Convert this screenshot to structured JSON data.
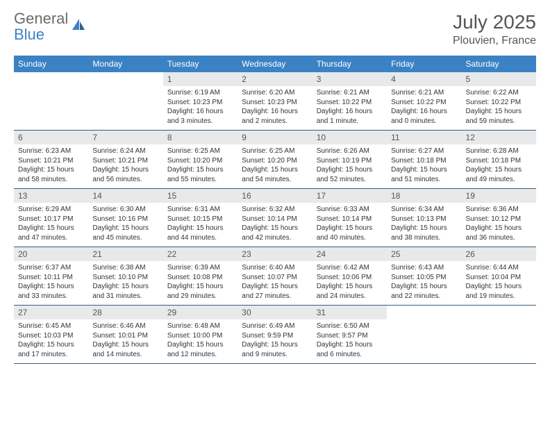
{
  "brand": {
    "word1": "General",
    "word2": "Blue"
  },
  "title": "July 2025",
  "location": "Plouvien, France",
  "colors": {
    "header_bg": "#3b82c4",
    "header_text": "#ffffff",
    "daynum_bg": "#e7e9ea",
    "daynum_text": "#555555",
    "body_text": "#333333",
    "row_border": "#3b5b7a",
    "title_color": "#555555",
    "brand_gray": "#6b6b6b",
    "brand_blue": "#3b82c4"
  },
  "typography": {
    "title_fontsize": 28,
    "location_fontsize": 16,
    "header_fontsize": 12,
    "daynum_fontsize": 12,
    "cell_fontsize": 10
  },
  "layout": {
    "columns": 7,
    "rows": 5
  },
  "day_headers": [
    "Sunday",
    "Monday",
    "Tuesday",
    "Wednesday",
    "Thursday",
    "Friday",
    "Saturday"
  ],
  "weeks": [
    [
      {
        "num": "",
        "lines": []
      },
      {
        "num": "",
        "lines": []
      },
      {
        "num": "1",
        "lines": [
          "Sunrise: 6:19 AM",
          "Sunset: 10:23 PM",
          "Daylight: 16 hours",
          "and 3 minutes."
        ]
      },
      {
        "num": "2",
        "lines": [
          "Sunrise: 6:20 AM",
          "Sunset: 10:23 PM",
          "Daylight: 16 hours",
          "and 2 minutes."
        ]
      },
      {
        "num": "3",
        "lines": [
          "Sunrise: 6:21 AM",
          "Sunset: 10:22 PM",
          "Daylight: 16 hours",
          "and 1 minute."
        ]
      },
      {
        "num": "4",
        "lines": [
          "Sunrise: 6:21 AM",
          "Sunset: 10:22 PM",
          "Daylight: 16 hours",
          "and 0 minutes."
        ]
      },
      {
        "num": "5",
        "lines": [
          "Sunrise: 6:22 AM",
          "Sunset: 10:22 PM",
          "Daylight: 15 hours",
          "and 59 minutes."
        ]
      }
    ],
    [
      {
        "num": "6",
        "lines": [
          "Sunrise: 6:23 AM",
          "Sunset: 10:21 PM",
          "Daylight: 15 hours",
          "and 58 minutes."
        ]
      },
      {
        "num": "7",
        "lines": [
          "Sunrise: 6:24 AM",
          "Sunset: 10:21 PM",
          "Daylight: 15 hours",
          "and 56 minutes."
        ]
      },
      {
        "num": "8",
        "lines": [
          "Sunrise: 6:25 AM",
          "Sunset: 10:20 PM",
          "Daylight: 15 hours",
          "and 55 minutes."
        ]
      },
      {
        "num": "9",
        "lines": [
          "Sunrise: 6:25 AM",
          "Sunset: 10:20 PM",
          "Daylight: 15 hours",
          "and 54 minutes."
        ]
      },
      {
        "num": "10",
        "lines": [
          "Sunrise: 6:26 AM",
          "Sunset: 10:19 PM",
          "Daylight: 15 hours",
          "and 52 minutes."
        ]
      },
      {
        "num": "11",
        "lines": [
          "Sunrise: 6:27 AM",
          "Sunset: 10:18 PM",
          "Daylight: 15 hours",
          "and 51 minutes."
        ]
      },
      {
        "num": "12",
        "lines": [
          "Sunrise: 6:28 AM",
          "Sunset: 10:18 PM",
          "Daylight: 15 hours",
          "and 49 minutes."
        ]
      }
    ],
    [
      {
        "num": "13",
        "lines": [
          "Sunrise: 6:29 AM",
          "Sunset: 10:17 PM",
          "Daylight: 15 hours",
          "and 47 minutes."
        ]
      },
      {
        "num": "14",
        "lines": [
          "Sunrise: 6:30 AM",
          "Sunset: 10:16 PM",
          "Daylight: 15 hours",
          "and 45 minutes."
        ]
      },
      {
        "num": "15",
        "lines": [
          "Sunrise: 6:31 AM",
          "Sunset: 10:15 PM",
          "Daylight: 15 hours",
          "and 44 minutes."
        ]
      },
      {
        "num": "16",
        "lines": [
          "Sunrise: 6:32 AM",
          "Sunset: 10:14 PM",
          "Daylight: 15 hours",
          "and 42 minutes."
        ]
      },
      {
        "num": "17",
        "lines": [
          "Sunrise: 6:33 AM",
          "Sunset: 10:14 PM",
          "Daylight: 15 hours",
          "and 40 minutes."
        ]
      },
      {
        "num": "18",
        "lines": [
          "Sunrise: 6:34 AM",
          "Sunset: 10:13 PM",
          "Daylight: 15 hours",
          "and 38 minutes."
        ]
      },
      {
        "num": "19",
        "lines": [
          "Sunrise: 6:36 AM",
          "Sunset: 10:12 PM",
          "Daylight: 15 hours",
          "and 36 minutes."
        ]
      }
    ],
    [
      {
        "num": "20",
        "lines": [
          "Sunrise: 6:37 AM",
          "Sunset: 10:11 PM",
          "Daylight: 15 hours",
          "and 33 minutes."
        ]
      },
      {
        "num": "21",
        "lines": [
          "Sunrise: 6:38 AM",
          "Sunset: 10:10 PM",
          "Daylight: 15 hours",
          "and 31 minutes."
        ]
      },
      {
        "num": "22",
        "lines": [
          "Sunrise: 6:39 AM",
          "Sunset: 10:08 PM",
          "Daylight: 15 hours",
          "and 29 minutes."
        ]
      },
      {
        "num": "23",
        "lines": [
          "Sunrise: 6:40 AM",
          "Sunset: 10:07 PM",
          "Daylight: 15 hours",
          "and 27 minutes."
        ]
      },
      {
        "num": "24",
        "lines": [
          "Sunrise: 6:42 AM",
          "Sunset: 10:06 PM",
          "Daylight: 15 hours",
          "and 24 minutes."
        ]
      },
      {
        "num": "25",
        "lines": [
          "Sunrise: 6:43 AM",
          "Sunset: 10:05 PM",
          "Daylight: 15 hours",
          "and 22 minutes."
        ]
      },
      {
        "num": "26",
        "lines": [
          "Sunrise: 6:44 AM",
          "Sunset: 10:04 PM",
          "Daylight: 15 hours",
          "and 19 minutes."
        ]
      }
    ],
    [
      {
        "num": "27",
        "lines": [
          "Sunrise: 6:45 AM",
          "Sunset: 10:03 PM",
          "Daylight: 15 hours",
          "and 17 minutes."
        ]
      },
      {
        "num": "28",
        "lines": [
          "Sunrise: 6:46 AM",
          "Sunset: 10:01 PM",
          "Daylight: 15 hours",
          "and 14 minutes."
        ]
      },
      {
        "num": "29",
        "lines": [
          "Sunrise: 6:48 AM",
          "Sunset: 10:00 PM",
          "Daylight: 15 hours",
          "and 12 minutes."
        ]
      },
      {
        "num": "30",
        "lines": [
          "Sunrise: 6:49 AM",
          "Sunset: 9:59 PM",
          "Daylight: 15 hours",
          "and 9 minutes."
        ]
      },
      {
        "num": "31",
        "lines": [
          "Sunrise: 6:50 AM",
          "Sunset: 9:57 PM",
          "Daylight: 15 hours",
          "and 6 minutes."
        ]
      },
      {
        "num": "",
        "lines": []
      },
      {
        "num": "",
        "lines": []
      }
    ]
  ]
}
